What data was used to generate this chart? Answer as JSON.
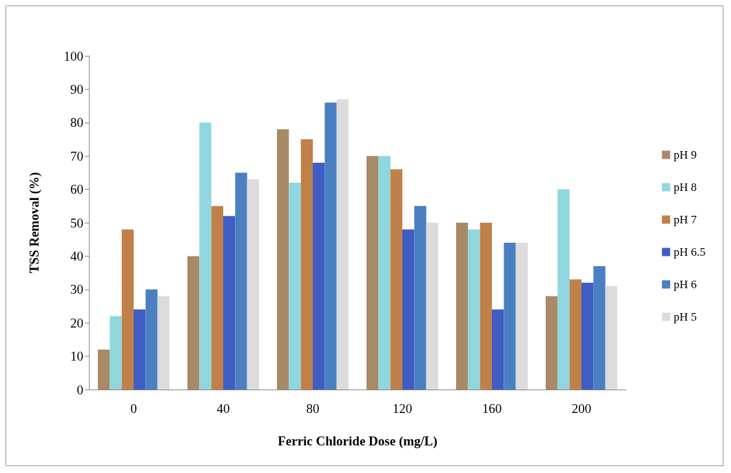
{
  "chart_data": {
    "type": "bar",
    "xlabel": "Ferric Chloride Dose (mg/L)",
    "ylabel": "TSS Removal (%)",
    "categories": [
      "0",
      "40",
      "80",
      "120",
      "160",
      "200"
    ],
    "series": [
      {
        "name": "pH 9",
        "color": "#a88a68",
        "values": [
          12,
          40,
          78,
          70,
          50,
          28
        ]
      },
      {
        "name": "pH 8",
        "color": "#8fd6de",
        "values": [
          22,
          80,
          62,
          70,
          48,
          60
        ]
      },
      {
        "name": "pH 7",
        "color": "#c0804a",
        "values": [
          48,
          55,
          75,
          66,
          50,
          33
        ]
      },
      {
        "name": "pH 6.5",
        "color": "#3e5ec4",
        "values": [
          24,
          52,
          68,
          48,
          24,
          32
        ]
      },
      {
        "name": "pH 6",
        "color": "#4a7fc1",
        "values": [
          30,
          65,
          86,
          55,
          44,
          37
        ]
      },
      {
        "name": "pH 5",
        "color": "#dcdcdc",
        "values": [
          28,
          63,
          87,
          50,
          44,
          31
        ]
      }
    ],
    "ylim": [
      0,
      100
    ],
    "yticks": [
      0,
      10,
      20,
      30,
      40,
      50,
      60,
      70,
      80,
      90,
      100
    ],
    "grid": false,
    "legend": "right"
  }
}
